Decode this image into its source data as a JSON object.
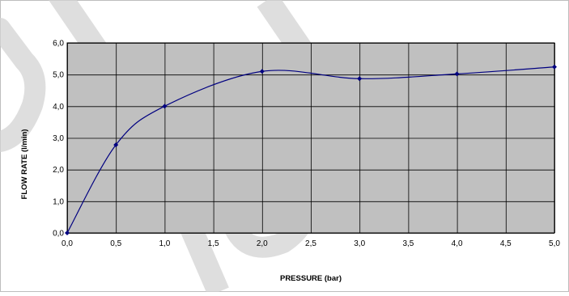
{
  "chart_data": {
    "type": "line",
    "title": "",
    "xlabel": "PRESSURE (bar)",
    "ylabel": "FLOW RATE (l/min)",
    "xlim": [
      0,
      5
    ],
    "ylim": [
      0,
      6
    ],
    "x_ticks": [
      0,
      0.5,
      1.0,
      1.5,
      2.0,
      2.5,
      3.0,
      3.5,
      4.0,
      4.5,
      5.0
    ],
    "x_tick_labels": [
      "0,0",
      "0,5",
      "1,0",
      "1,5",
      "2,0",
      "2,5",
      "3,0",
      "3,5",
      "4,0",
      "4,5",
      "5,0"
    ],
    "y_ticks": [
      0,
      1,
      2,
      3,
      4,
      5,
      6
    ],
    "y_tick_labels": [
      "0,0",
      "1,0",
      "2,0",
      "3,0",
      "4,0",
      "5,0",
      "6,0"
    ],
    "grid": true,
    "legend": "none",
    "smooth": true,
    "series": [
      {
        "x": [
          0,
          0.5,
          1.0,
          2.0,
          3.0,
          4.0,
          5.0
        ],
        "y": [
          0.0,
          2.78,
          4.0,
          5.1,
          4.87,
          5.02,
          5.24
        ]
      }
    ],
    "colors": {
      "plot_background": "#c0c0c0",
      "grid": "#000000",
      "line": "#000080",
      "marker": "#000080",
      "watermark": "#d3d3d3"
    }
  }
}
